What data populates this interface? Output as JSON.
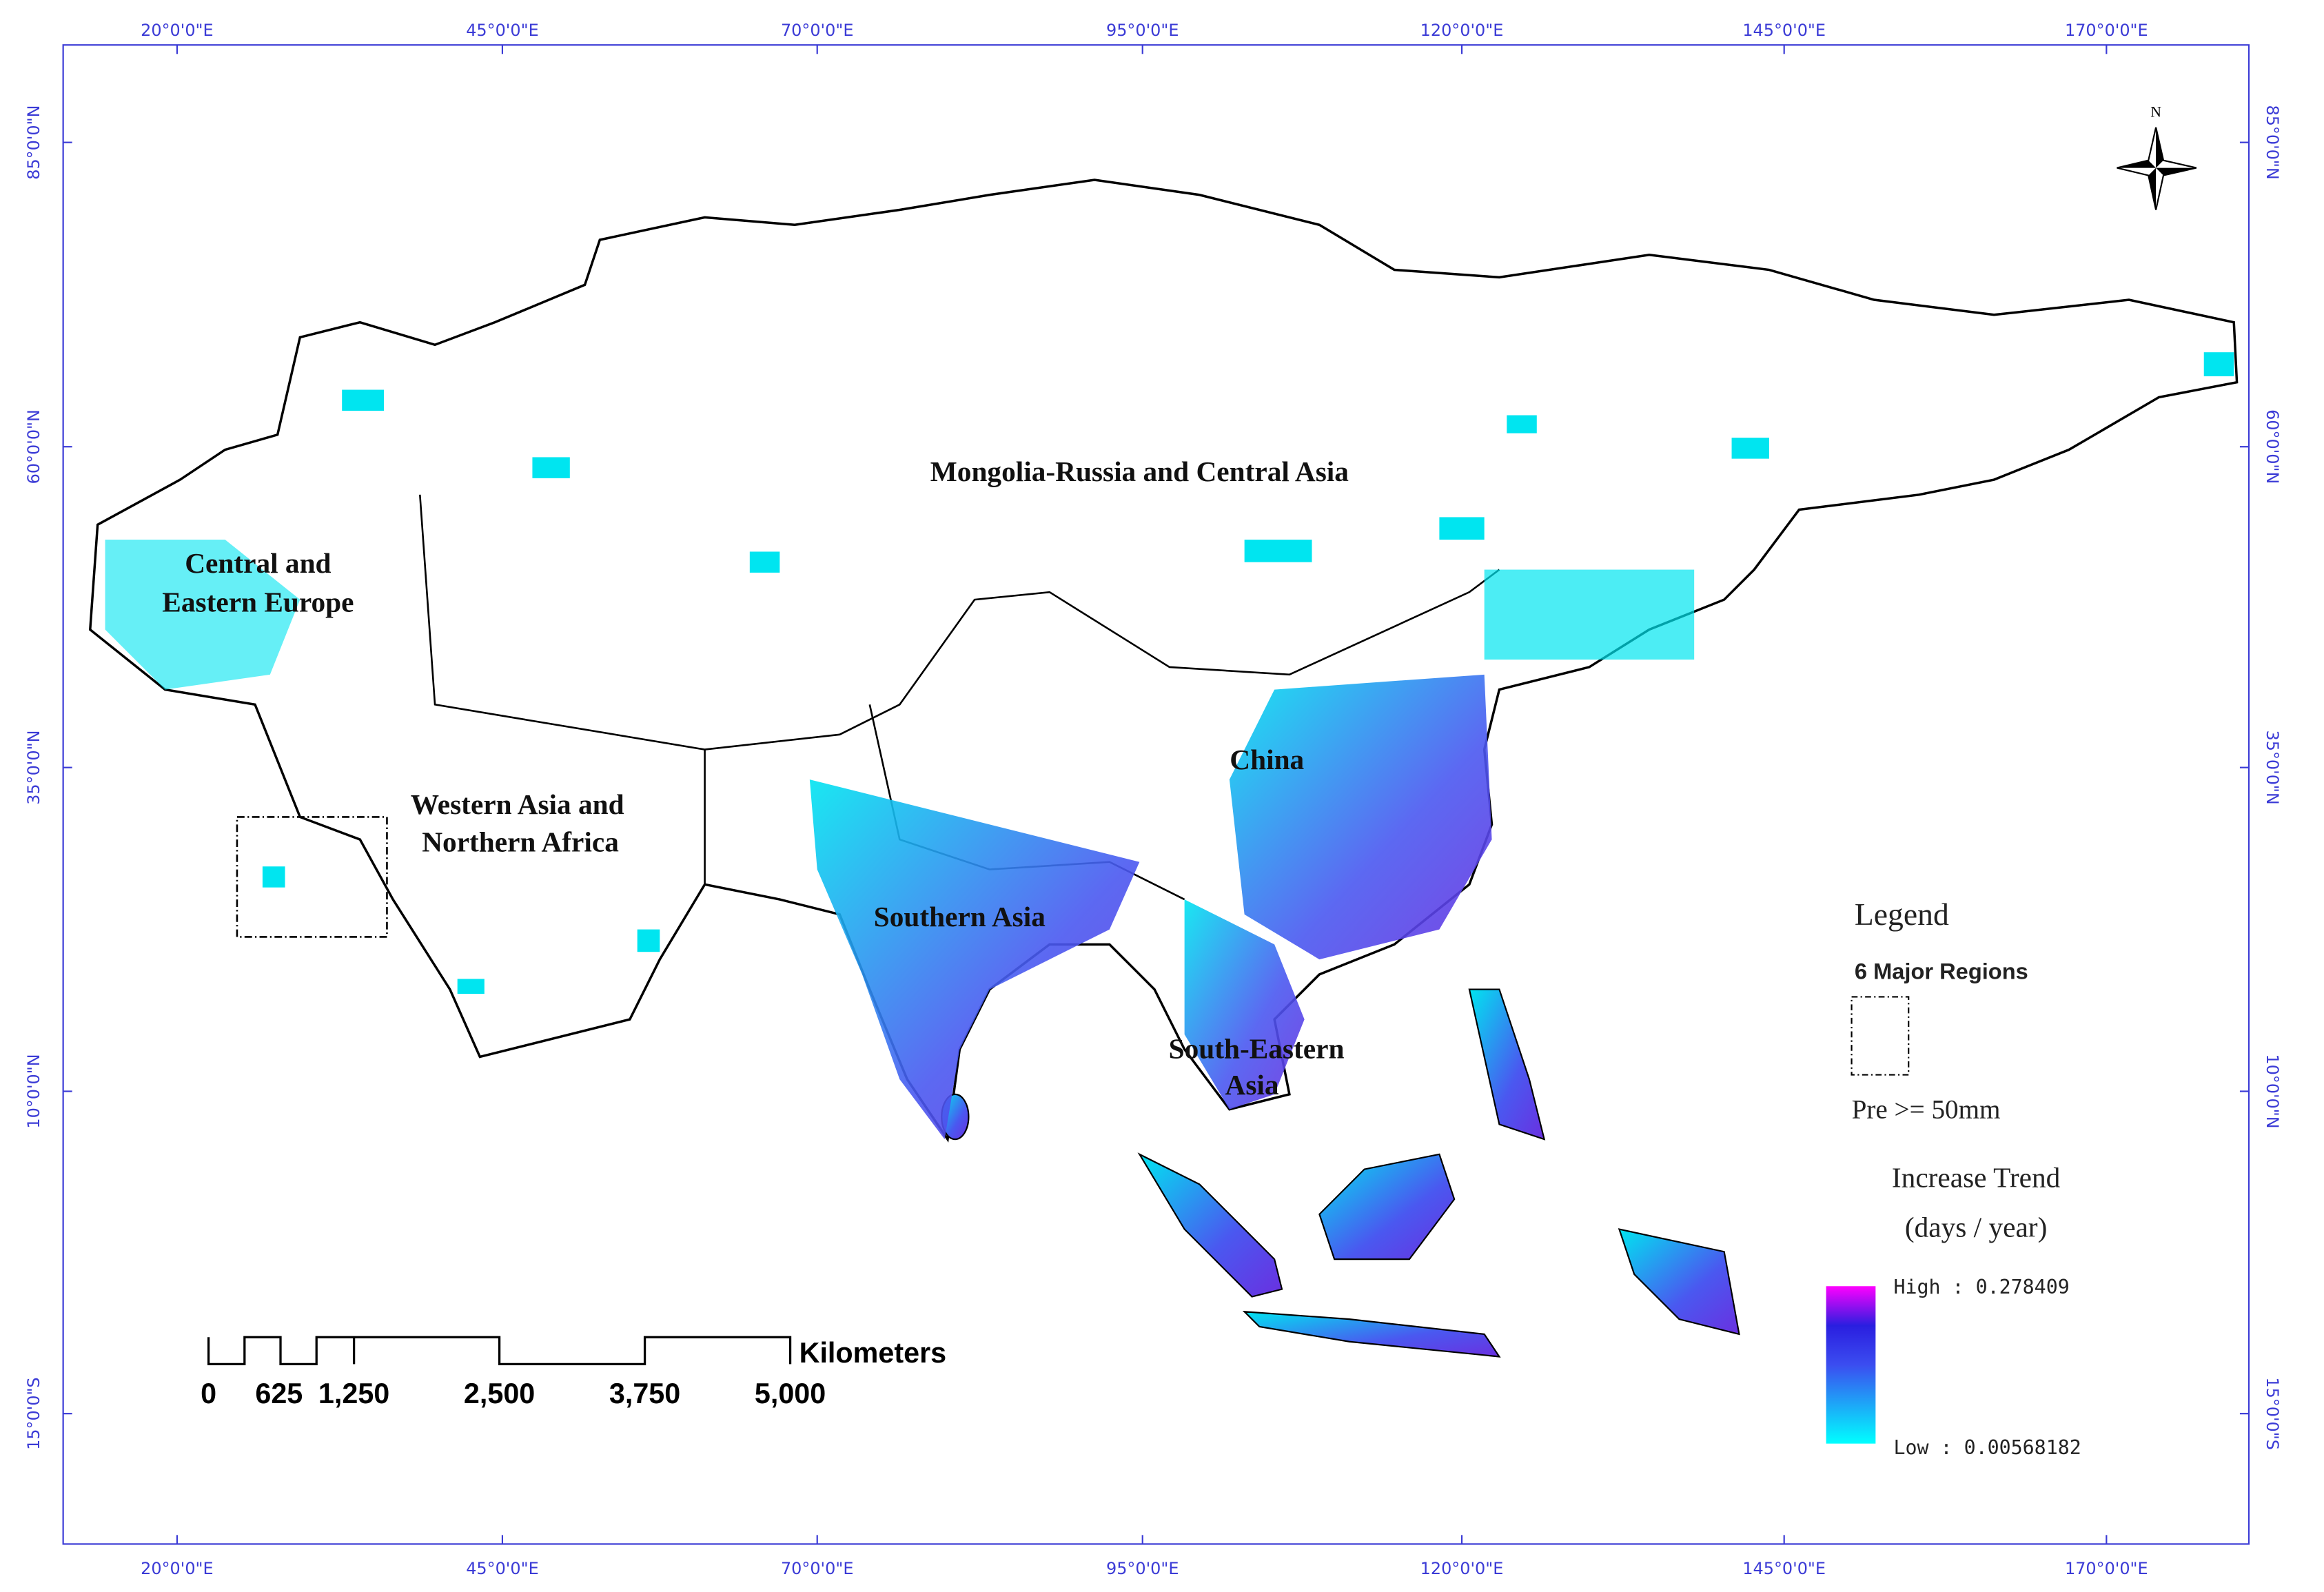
{
  "map": {
    "top_axis_labels": [
      "20°0'0\"E",
      "45°0'0\"E",
      "70°0'0\"E",
      "95°0'0\"E",
      "120°0'0\"E",
      "145°0'0\"E",
      "170°0'0\"E"
    ],
    "bottom_axis_labels": [
      "20°0'0\"E",
      "45°0'0\"E",
      "70°0'0\"E",
      "95°0'0\"E",
      "120°0'0\"E",
      "145°0'0\"E",
      "170°0'0\"E"
    ],
    "left_axis_labels": [
      "85°0'0\"N",
      "60°0'0\"N",
      "35°0'0\"N",
      "10°0'0\"N",
      "15°0'0\"S"
    ],
    "right_axis_labels": [
      "85°0'0\"N",
      "60°0'0\"N",
      "35°0'0\"N",
      "10°0'0\"N",
      "15°0'0\"S"
    ],
    "north": "N",
    "region_labels": [
      "Mongolia-Russia and Central Asia",
      "Central and",
      "Eastern Europe",
      "Western Asia and",
      "Northern Africa",
      "China",
      "Southern Asia",
      "South-Eastern",
      "Asia"
    ],
    "legend": {
      "title": "Legend",
      "regions_heading": "6 Major Regions",
      "pre_label": "Pre >= 50mm",
      "trend_title": "Increase Trend",
      "trend_units": "(days / year)",
      "high_label": "High : 0.278409",
      "low_label": "Low : 0.00568182"
    },
    "scale_bar": {
      "unit": "Kilometers",
      "labels": [
        "0",
        "625",
        "1,250",
        "2,500",
        "3,750",
        "5,000"
      ]
    }
  }
}
